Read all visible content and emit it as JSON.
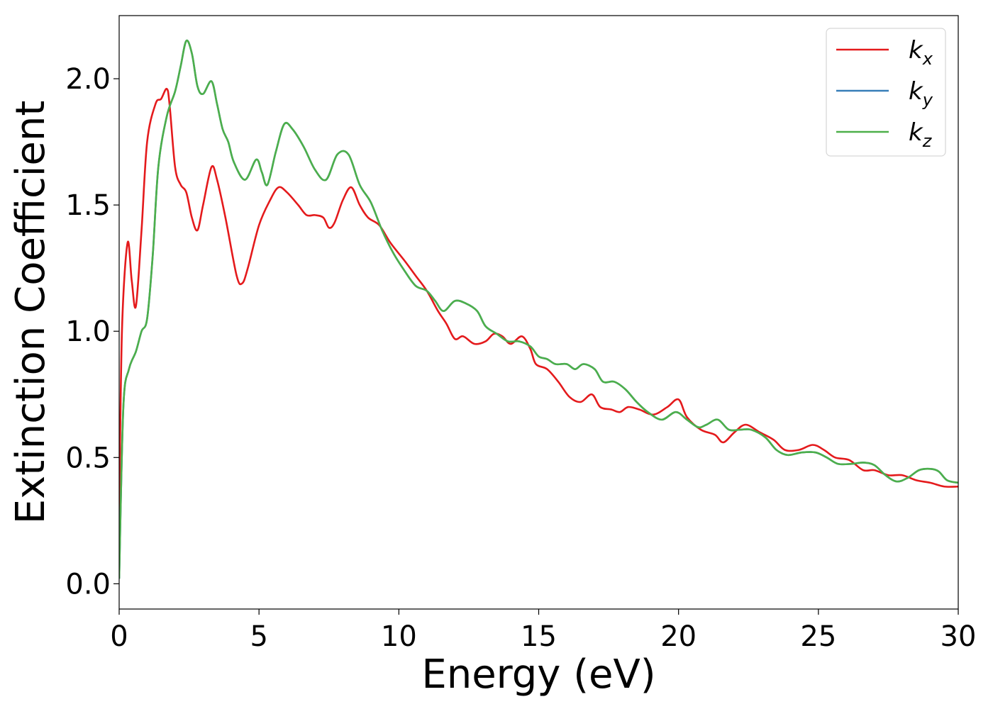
{
  "chart_data": {
    "type": "line",
    "title": "",
    "xlabel": "Energy (eV)",
    "ylabel": "Extinction Coefficient",
    "xlim": [
      0,
      30
    ],
    "ylim": [
      -0.1,
      2.25
    ],
    "xticks": [
      0,
      5,
      10,
      15,
      20,
      25,
      30
    ],
    "xtick_labels": [
      "0",
      "5",
      "10",
      "15",
      "20",
      "25",
      "30"
    ],
    "yticks": [
      0.0,
      0.5,
      1.0,
      1.5,
      2.0
    ],
    "ytick_labels": [
      "0.0",
      "0.5",
      "1.0",
      "1.5",
      "2.0"
    ],
    "grid": false,
    "legend": "top-right",
    "series": [
      {
        "name": "kx",
        "base": "k",
        "sub": "x",
        "color": "#e41a1c",
        "points": [
          [
            0,
            0.25
          ],
          [
            0.1,
            1.0
          ],
          [
            0.3,
            1.35
          ],
          [
            0.45,
            1.2
          ],
          [
            0.6,
            1.1
          ],
          [
            0.8,
            1.4
          ],
          [
            1.0,
            1.75
          ],
          [
            1.3,
            1.9
          ],
          [
            1.5,
            1.92
          ],
          [
            1.7,
            1.96
          ],
          [
            1.8,
            1.9
          ],
          [
            2.0,
            1.65
          ],
          [
            2.2,
            1.58
          ],
          [
            2.4,
            1.55
          ],
          [
            2.6,
            1.45
          ],
          [
            2.8,
            1.4
          ],
          [
            3.0,
            1.5
          ],
          [
            3.3,
            1.65
          ],
          [
            3.5,
            1.6
          ],
          [
            3.8,
            1.45
          ],
          [
            4.2,
            1.22
          ],
          [
            4.4,
            1.19
          ],
          [
            4.6,
            1.25
          ],
          [
            5.0,
            1.42
          ],
          [
            5.4,
            1.52
          ],
          [
            5.7,
            1.57
          ],
          [
            6.0,
            1.55
          ],
          [
            6.4,
            1.5
          ],
          [
            6.7,
            1.46
          ],
          [
            7.0,
            1.46
          ],
          [
            7.3,
            1.45
          ],
          [
            7.5,
            1.41
          ],
          [
            7.7,
            1.43
          ],
          [
            8.0,
            1.52
          ],
          [
            8.3,
            1.57
          ],
          [
            8.6,
            1.5
          ],
          [
            8.9,
            1.45
          ],
          [
            9.3,
            1.42
          ],
          [
            9.7,
            1.35
          ],
          [
            10.2,
            1.28
          ],
          [
            10.6,
            1.22
          ],
          [
            11.0,
            1.16
          ],
          [
            11.4,
            1.08
          ],
          [
            11.7,
            1.03
          ],
          [
            12.0,
            0.97
          ],
          [
            12.3,
            0.98
          ],
          [
            12.7,
            0.95
          ],
          [
            13.1,
            0.96
          ],
          [
            13.4,
            0.99
          ],
          [
            13.7,
            0.98
          ],
          [
            14.0,
            0.95
          ],
          [
            14.4,
            0.98
          ],
          [
            14.7,
            0.93
          ],
          [
            14.9,
            0.87
          ],
          [
            15.3,
            0.85
          ],
          [
            15.7,
            0.8
          ],
          [
            16.1,
            0.74
          ],
          [
            16.5,
            0.72
          ],
          [
            16.9,
            0.75
          ],
          [
            17.2,
            0.7
          ],
          [
            17.6,
            0.69
          ],
          [
            17.9,
            0.68
          ],
          [
            18.2,
            0.7
          ],
          [
            18.6,
            0.69
          ],
          [
            19.1,
            0.67
          ],
          [
            19.6,
            0.7
          ],
          [
            20.0,
            0.73
          ],
          [
            20.3,
            0.66
          ],
          [
            20.8,
            0.61
          ],
          [
            21.3,
            0.59
          ],
          [
            21.6,
            0.56
          ],
          [
            22.0,
            0.6
          ],
          [
            22.4,
            0.63
          ],
          [
            22.9,
            0.6
          ],
          [
            23.4,
            0.57
          ],
          [
            23.8,
            0.53
          ],
          [
            24.3,
            0.53
          ],
          [
            24.8,
            0.55
          ],
          [
            25.2,
            0.53
          ],
          [
            25.6,
            0.5
          ],
          [
            26.1,
            0.49
          ],
          [
            26.6,
            0.45
          ],
          [
            27.0,
            0.45
          ],
          [
            27.5,
            0.43
          ],
          [
            28.0,
            0.43
          ],
          [
            28.5,
            0.41
          ],
          [
            29.0,
            0.4
          ],
          [
            29.5,
            0.385
          ],
          [
            30.0,
            0.385
          ]
        ]
      },
      {
        "name": "ky",
        "base": "k",
        "sub": "y",
        "color": "#377eb8",
        "points": [
          [
            0,
            0.02
          ],
          [
            0.15,
            0.7
          ],
          [
            0.35,
            0.85
          ],
          [
            0.6,
            0.92
          ],
          [
            0.8,
            1.0
          ],
          [
            1.0,
            1.05
          ],
          [
            1.2,
            1.3
          ],
          [
            1.4,
            1.65
          ],
          [
            1.7,
            1.85
          ],
          [
            2.0,
            1.95
          ],
          [
            2.2,
            2.05
          ],
          [
            2.4,
            2.15
          ],
          [
            2.6,
            2.1
          ],
          [
            2.8,
            1.97
          ],
          [
            3.0,
            1.94
          ],
          [
            3.3,
            1.99
          ],
          [
            3.5,
            1.9
          ],
          [
            3.7,
            1.8
          ],
          [
            3.9,
            1.75
          ],
          [
            4.1,
            1.67
          ],
          [
            4.5,
            1.6
          ],
          [
            4.9,
            1.68
          ],
          [
            5.1,
            1.63
          ],
          [
            5.3,
            1.58
          ],
          [
            5.6,
            1.71
          ],
          [
            5.9,
            1.82
          ],
          [
            6.2,
            1.8
          ],
          [
            6.6,
            1.73
          ],
          [
            7.0,
            1.64
          ],
          [
            7.4,
            1.6
          ],
          [
            7.8,
            1.7
          ],
          [
            8.2,
            1.7
          ],
          [
            8.6,
            1.58
          ],
          [
            9.0,
            1.51
          ],
          [
            9.4,
            1.4
          ],
          [
            9.8,
            1.31
          ],
          [
            10.2,
            1.24
          ],
          [
            10.6,
            1.18
          ],
          [
            11.0,
            1.16
          ],
          [
            11.3,
            1.12
          ],
          [
            11.6,
            1.08
          ],
          [
            12.0,
            1.12
          ],
          [
            12.4,
            1.11
          ],
          [
            12.8,
            1.08
          ],
          [
            13.1,
            1.02
          ],
          [
            13.5,
            0.99
          ],
          [
            13.9,
            0.96
          ],
          [
            14.3,
            0.96
          ],
          [
            14.7,
            0.94
          ],
          [
            15.0,
            0.9
          ],
          [
            15.3,
            0.89
          ],
          [
            15.6,
            0.87
          ],
          [
            16.0,
            0.87
          ],
          [
            16.3,
            0.85
          ],
          [
            16.6,
            0.87
          ],
          [
            17.0,
            0.85
          ],
          [
            17.3,
            0.8
          ],
          [
            17.7,
            0.8
          ],
          [
            18.1,
            0.77
          ],
          [
            18.5,
            0.72
          ],
          [
            18.9,
            0.68
          ],
          [
            19.4,
            0.65
          ],
          [
            19.9,
            0.68
          ],
          [
            20.3,
            0.65
          ],
          [
            20.7,
            0.62
          ],
          [
            21.0,
            0.63
          ],
          [
            21.4,
            0.65
          ],
          [
            21.8,
            0.61
          ],
          [
            22.2,
            0.61
          ],
          [
            22.6,
            0.61
          ],
          [
            23.1,
            0.58
          ],
          [
            23.5,
            0.53
          ],
          [
            23.9,
            0.51
          ],
          [
            24.4,
            0.52
          ],
          [
            24.9,
            0.52
          ],
          [
            25.3,
            0.5
          ],
          [
            25.7,
            0.475
          ],
          [
            26.2,
            0.475
          ],
          [
            26.6,
            0.48
          ],
          [
            27.0,
            0.47
          ],
          [
            27.4,
            0.43
          ],
          [
            27.8,
            0.405
          ],
          [
            28.2,
            0.42
          ],
          [
            28.6,
            0.45
          ],
          [
            29.0,
            0.455
          ],
          [
            29.3,
            0.445
          ],
          [
            29.6,
            0.41
          ],
          [
            30.0,
            0.4
          ]
        ]
      },
      {
        "name": "kz",
        "base": "k",
        "sub": "z",
        "color": "#4daf4a",
        "points": [
          [
            0,
            0.02
          ],
          [
            0.15,
            0.7
          ],
          [
            0.35,
            0.85
          ],
          [
            0.6,
            0.92
          ],
          [
            0.8,
            1.0
          ],
          [
            1.0,
            1.05
          ],
          [
            1.2,
            1.3
          ],
          [
            1.4,
            1.65
          ],
          [
            1.7,
            1.85
          ],
          [
            2.0,
            1.95
          ],
          [
            2.2,
            2.05
          ],
          [
            2.4,
            2.15
          ],
          [
            2.6,
            2.1
          ],
          [
            2.8,
            1.97
          ],
          [
            3.0,
            1.94
          ],
          [
            3.3,
            1.99
          ],
          [
            3.5,
            1.9
          ],
          [
            3.7,
            1.8
          ],
          [
            3.9,
            1.75
          ],
          [
            4.1,
            1.67
          ],
          [
            4.5,
            1.6
          ],
          [
            4.9,
            1.68
          ],
          [
            5.1,
            1.63
          ],
          [
            5.3,
            1.58
          ],
          [
            5.6,
            1.71
          ],
          [
            5.9,
            1.82
          ],
          [
            6.2,
            1.8
          ],
          [
            6.6,
            1.73
          ],
          [
            7.0,
            1.64
          ],
          [
            7.4,
            1.6
          ],
          [
            7.8,
            1.7
          ],
          [
            8.2,
            1.7
          ],
          [
            8.6,
            1.58
          ],
          [
            9.0,
            1.51
          ],
          [
            9.4,
            1.4
          ],
          [
            9.8,
            1.31
          ],
          [
            10.2,
            1.24
          ],
          [
            10.6,
            1.18
          ],
          [
            11.0,
            1.16
          ],
          [
            11.3,
            1.12
          ],
          [
            11.6,
            1.08
          ],
          [
            12.0,
            1.12
          ],
          [
            12.4,
            1.11
          ],
          [
            12.8,
            1.08
          ],
          [
            13.1,
            1.02
          ],
          [
            13.5,
            0.99
          ],
          [
            13.9,
            0.96
          ],
          [
            14.3,
            0.96
          ],
          [
            14.7,
            0.94
          ],
          [
            15.0,
            0.9
          ],
          [
            15.3,
            0.89
          ],
          [
            15.6,
            0.87
          ],
          [
            16.0,
            0.87
          ],
          [
            16.3,
            0.85
          ],
          [
            16.6,
            0.87
          ],
          [
            17.0,
            0.85
          ],
          [
            17.3,
            0.8
          ],
          [
            17.7,
            0.8
          ],
          [
            18.1,
            0.77
          ],
          [
            18.5,
            0.72
          ],
          [
            18.9,
            0.68
          ],
          [
            19.4,
            0.65
          ],
          [
            19.9,
            0.68
          ],
          [
            20.3,
            0.65
          ],
          [
            20.7,
            0.62
          ],
          [
            21.0,
            0.63
          ],
          [
            21.4,
            0.65
          ],
          [
            21.8,
            0.61
          ],
          [
            22.2,
            0.61
          ],
          [
            22.6,
            0.61
          ],
          [
            23.1,
            0.58
          ],
          [
            23.5,
            0.53
          ],
          [
            23.9,
            0.51
          ],
          [
            24.4,
            0.52
          ],
          [
            24.9,
            0.52
          ],
          [
            25.3,
            0.5
          ],
          [
            25.7,
            0.475
          ],
          [
            26.2,
            0.475
          ],
          [
            26.6,
            0.48
          ],
          [
            27.0,
            0.47
          ],
          [
            27.4,
            0.43
          ],
          [
            27.8,
            0.405
          ],
          [
            28.2,
            0.42
          ],
          [
            28.6,
            0.45
          ],
          [
            29.0,
            0.455
          ],
          [
            29.3,
            0.445
          ],
          [
            29.6,
            0.41
          ],
          [
            30.0,
            0.4
          ]
        ]
      }
    ]
  }
}
